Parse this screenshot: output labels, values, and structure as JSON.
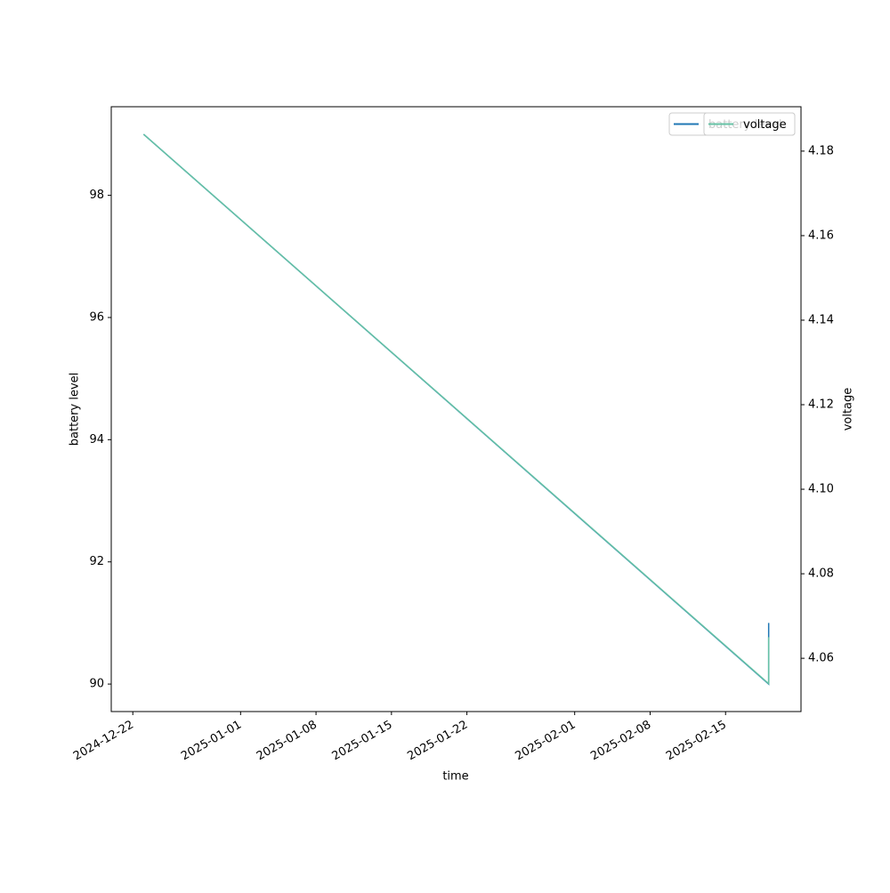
{
  "chart_data": {
    "type": "line",
    "x": [
      "2024-12-23",
      "2025-02-19",
      "2025-02-19"
    ],
    "series": [
      {
        "name": "battery level",
        "color": "#1f77b4",
        "values": [
          99,
          90,
          91
        ]
      },
      {
        "name": "voltage",
        "color": "#66c2a5",
        "axis": "y2",
        "values": [
          4.184,
          4.054,
          4.065
        ]
      }
    ],
    "xlabel": "time",
    "ylabel": "battery level",
    "y2label": "voltage",
    "xlim": [
      "2024-12-20",
      "2025-02-22"
    ],
    "xticks": [
      "2024-12-22",
      "2025-01-01",
      "2025-01-08",
      "2025-01-15",
      "2025-01-22",
      "2025-02-01",
      "2025-02-08",
      "2025-02-15"
    ],
    "ylim": [
      89.55,
      99.45
    ],
    "yticks": [
      90,
      92,
      94,
      96,
      98
    ],
    "y2lim": [
      4.0474,
      4.1905
    ],
    "y2ticks": [
      4.06,
      4.08,
      {
        "value": 4.1,
        "label": "4.10"
      },
      4.12,
      4.14,
      4.16,
      4.18
    ],
    "legend": "upper right"
  }
}
